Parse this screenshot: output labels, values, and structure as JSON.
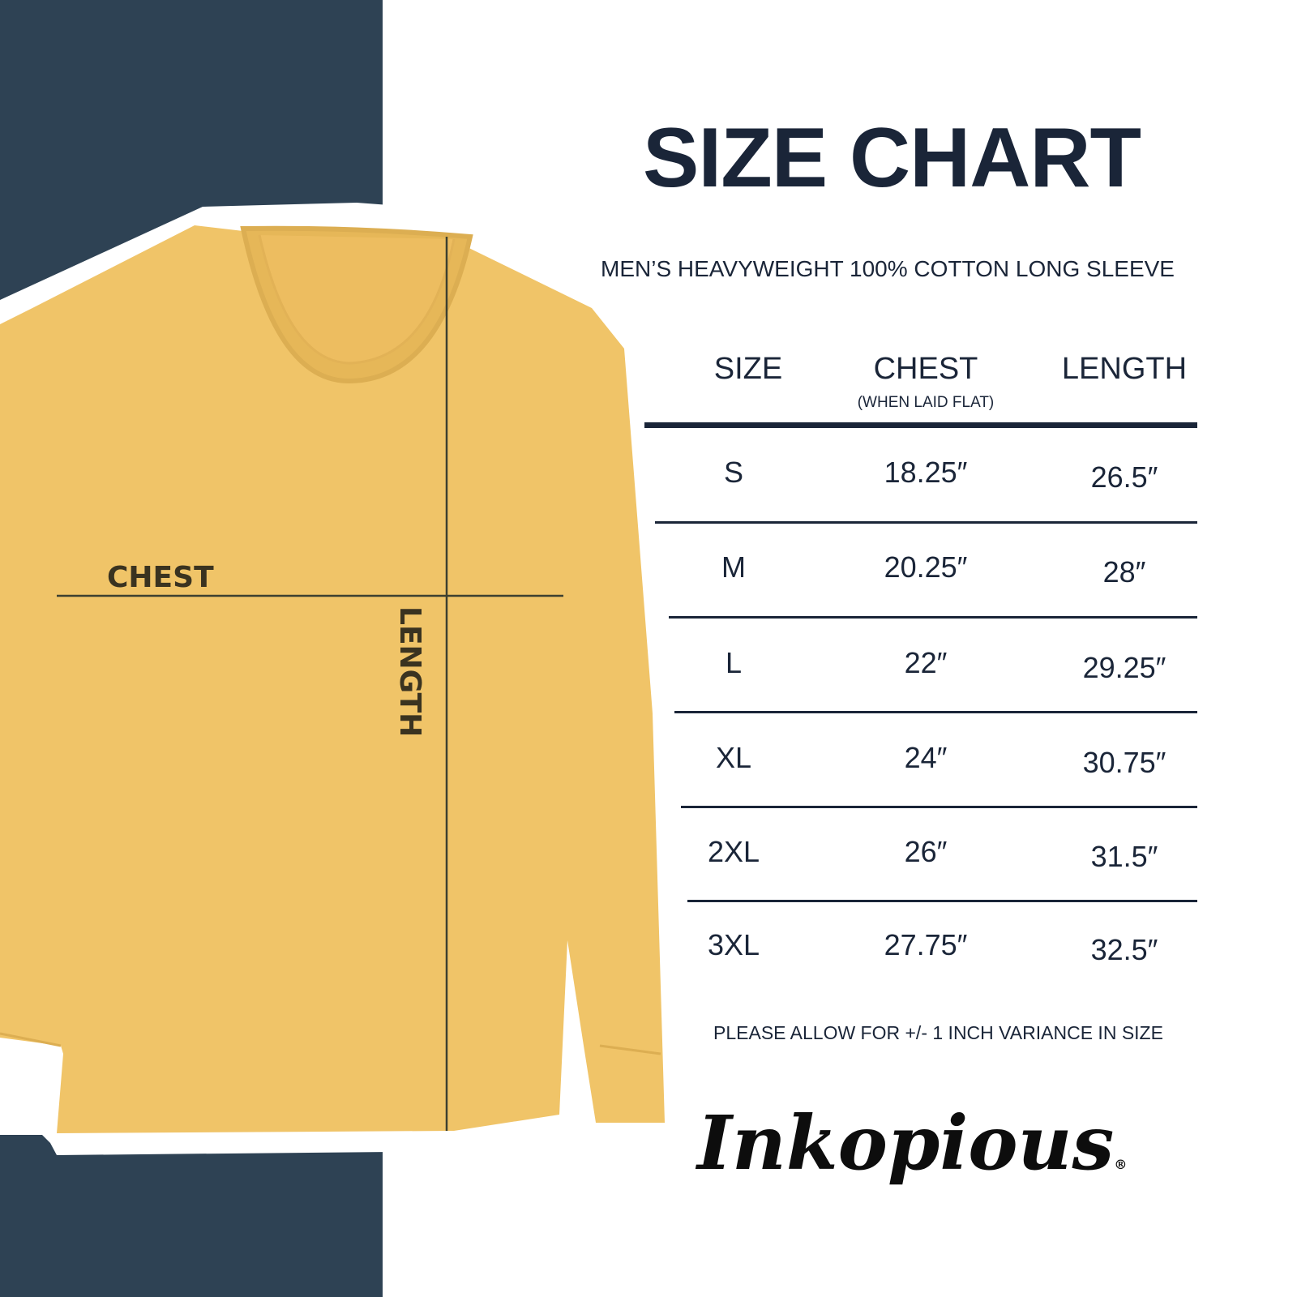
{
  "title": "SIZE CHART",
  "subtitle": "MEN’S HEAVYWEIGHT 100% COTTON LONG SLEEVE",
  "table": {
    "headers": [
      {
        "label": "SIZE",
        "sub": ""
      },
      {
        "label": "CHEST",
        "sub": "(WHEN LAID FLAT)"
      },
      {
        "label": "LENGTH",
        "sub": ""
      }
    ],
    "rows": [
      [
        "S",
        "18.25″",
        "26.5″"
      ],
      [
        "M",
        "20.25″",
        "28″"
      ],
      [
        "L",
        "22″",
        "29.25″"
      ],
      [
        "XL",
        "24″",
        "30.75″"
      ],
      [
        "2XL",
        "26″",
        "31.5″"
      ],
      [
        "3XL",
        "27.75″",
        "32.5″"
      ]
    ]
  },
  "footer_note": "PLEASE ALLOW FOR +/- 1 INCH VARIANCE IN SIZE",
  "diagram": {
    "chest_label": "CHEST",
    "length_label": "LENGTH"
  },
  "logo": {
    "text": "Inkopious",
    "registered": "®"
  },
  "colors": {
    "panel": "#2e4254",
    "shirt": "#f0c468",
    "text": "#1a2538"
  }
}
